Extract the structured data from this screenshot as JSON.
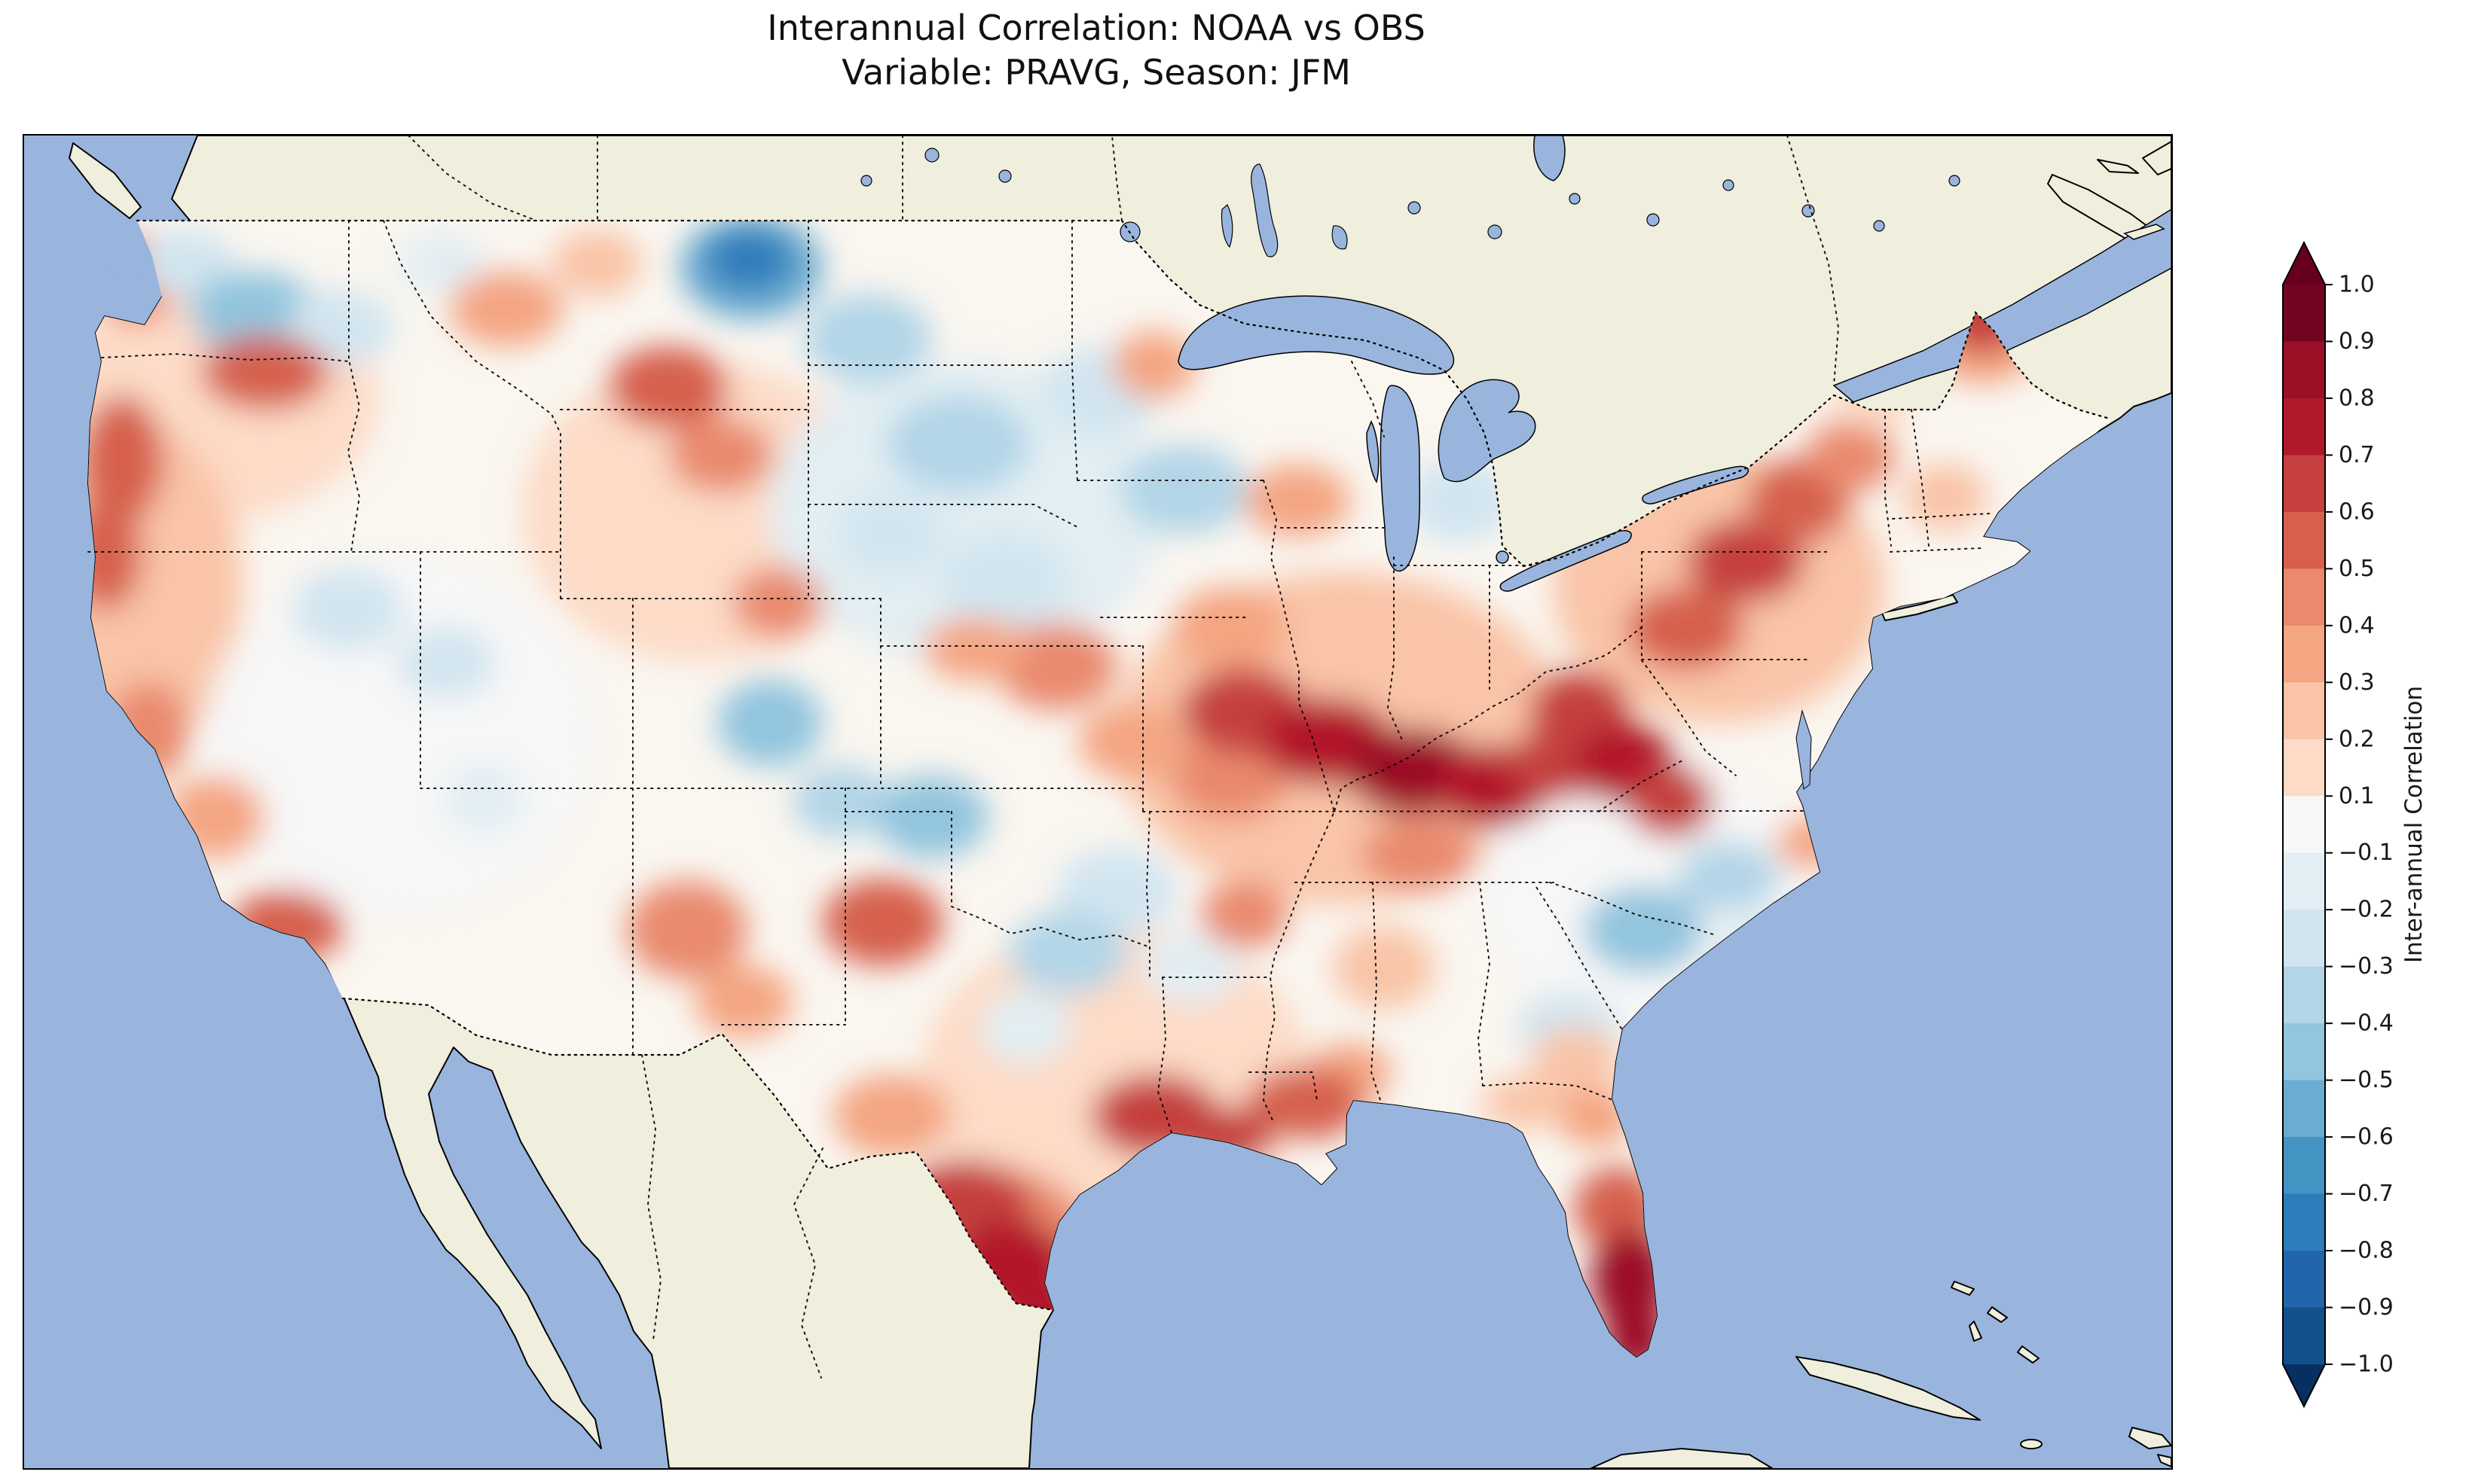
{
  "title": {
    "line1": "Interannual Correlation: NOAA vs OBS",
    "line2": "Variable: PRAVG, Season: JFM"
  },
  "colorbar": {
    "label": "Inter-annual Correlation",
    "ticks": [
      "1.0",
      "0.9",
      "0.8",
      "0.7",
      "0.6",
      "0.5",
      "0.4",
      "0.3",
      "0.2",
      "0.1",
      "−0.1",
      "−0.2",
      "−0.3",
      "−0.4",
      "−0.5",
      "−0.6",
      "−0.7",
      "−0.8",
      "−0.9",
      "−1.0"
    ],
    "segment_colors": [
      "#730421",
      "#9b1027",
      "#b2182b",
      "#c5403e",
      "#d6604d",
      "#e98a6e",
      "#f4a582",
      "#f9c4a7",
      "#fddbc7",
      "#f7f7f7",
      "#e2eef3",
      "#d1e5f0",
      "#b2d5e7",
      "#92c5de",
      "#6bacd1",
      "#4393c3",
      "#2d7dbb",
      "#2166ac",
      "#12508c"
    ],
    "extend_over_color": "#67001f",
    "extend_under_color": "#053061",
    "tick_color": "#1a1a1a"
  },
  "map_style": {
    "ocean_color": "#99b5de",
    "land_color": "#f0eedc",
    "us_base_color": "#faf6f0",
    "coast_color": "#000000"
  },
  "chart_data": {
    "type": "heatmap",
    "title": "Interannual Correlation: NOAA vs OBS",
    "subtitle": "Variable: PRAVG, Season: JFM",
    "variable": "PRAVG",
    "season": "JFM",
    "datasets_compared": [
      "NOAA",
      "OBS"
    ],
    "metric": "Inter-annual Correlation",
    "value_range": [
      -1.0,
      1.0
    ],
    "contour_level_step": 0.1,
    "colormap": "RdBu_r",
    "legend_position": "right vertical colorbar with extend triangles",
    "region": "Contiguous United States (with surrounding Canada, Mexico, Atlantic and Pacific oceans, Great Lakes)",
    "regions_summary": [
      {
        "region": "Washington coast",
        "correlation": 0.45
      },
      {
        "region": "Eastern Washington / N Idaho",
        "correlation": -0.4
      },
      {
        "region": "Northern California coast",
        "correlation": 0.55
      },
      {
        "region": "Southern California",
        "correlation": 0.5
      },
      {
        "region": "Great Basin (NV/UT)",
        "correlation": -0.25
      },
      {
        "region": "N Montana / N Dakota border",
        "correlation": -0.8
      },
      {
        "region": "Central Colorado",
        "correlation": -0.5
      },
      {
        "region": "Nebraska / Dakotas / W Minnesota",
        "correlation": -0.35
      },
      {
        "region": "New Mexico",
        "correlation": 0.45
      },
      {
        "region": "Texas Panhandle",
        "correlation": 0.5
      },
      {
        "region": "South Texas",
        "correlation": 0.75
      },
      {
        "region": "Texas-Louisiana Gulf Coast",
        "correlation": 0.65
      },
      {
        "region": "Ohio Valley (MO-IL-KY-OH-WV)",
        "correlation": 0.8
      },
      {
        "region": "Pennsylvania / New York",
        "correlation": 0.55
      },
      {
        "region": "Maine",
        "correlation": 0.6
      },
      {
        "region": "Carolinas",
        "correlation": -0.45
      },
      {
        "region": "Florida peninsula",
        "correlation": 0.85
      }
    ],
    "map_blobs_format": "[x_px, y_px, rx_px, ry_px, correlation] in 2850x1770 map coordinates (approximate contour field)",
    "map_blobs": [
      [
        250,
        350,
        220,
        160,
        0.15
      ],
      [
        150,
        600,
        140,
        220,
        0.2
      ],
      [
        500,
        800,
        260,
        240,
        -0.1
      ],
      [
        900,
        500,
        240,
        200,
        0.15
      ],
      [
        1250,
        500,
        260,
        200,
        -0.15
      ],
      [
        1750,
        800,
        300,
        220,
        0.2
      ],
      [
        1450,
        1250,
        260,
        200,
        0.1
      ],
      [
        2150,
        1000,
        220,
        180,
        -0.1
      ],
      [
        2250,
        600,
        220,
        180,
        0.2
      ],
      [
        150,
        190,
        55,
        60,
        0.45
      ],
      [
        215,
        170,
        65,
        45,
        -0.3
      ],
      [
        305,
        235,
        85,
        55,
        -0.45
      ],
      [
        420,
        255,
        70,
        50,
        -0.3
      ],
      [
        555,
        170,
        60,
        40,
        -0.2
      ],
      [
        640,
        230,
        75,
        50,
        0.35
      ],
      [
        760,
        170,
        60,
        45,
        0.25
      ],
      [
        965,
        175,
        95,
        70,
        -0.55
      ],
      [
        962,
        165,
        58,
        42,
        -0.8
      ],
      [
        1120,
        270,
        85,
        60,
        -0.35
      ],
      [
        1240,
        410,
        95,
        65,
        -0.4
      ],
      [
        1430,
        340,
        80,
        60,
        -0.3
      ],
      [
        1540,
        470,
        85,
        60,
        -0.35
      ],
      [
        1300,
        590,
        85,
        60,
        -0.3
      ],
      [
        1150,
        530,
        70,
        55,
        -0.25
      ],
      [
        320,
        315,
        85,
        50,
        0.5
      ],
      [
        130,
        430,
        55,
        85,
        0.55
      ],
      [
        108,
        555,
        48,
        75,
        0.55
      ],
      [
        165,
        790,
        55,
        65,
        0.45
      ],
      [
        255,
        905,
        65,
        55,
        0.35
      ],
      [
        350,
        1050,
        75,
        48,
        0.5
      ],
      [
        430,
        630,
        75,
        55,
        -0.3
      ],
      [
        560,
        700,
        65,
        48,
        -0.25
      ],
      [
        610,
        880,
        55,
        48,
        -0.2
      ],
      [
        855,
        335,
        80,
        55,
        0.5
      ],
      [
        925,
        425,
        70,
        50,
        0.45
      ],
      [
        1000,
        620,
        60,
        48,
        0.4
      ],
      [
        990,
        780,
        70,
        58,
        -0.5
      ],
      [
        1085,
        885,
        65,
        48,
        -0.35
      ],
      [
        1205,
        905,
        75,
        55,
        -0.45
      ],
      [
        880,
        1055,
        80,
        65,
        0.45
      ],
      [
        955,
        1150,
        65,
        48,
        0.3
      ],
      [
        1140,
        1045,
        80,
        58,
        0.5
      ],
      [
        1370,
        705,
        80,
        58,
        0.4
      ],
      [
        1470,
        805,
        70,
        50,
        0.35
      ],
      [
        1600,
        655,
        75,
        55,
        0.3
      ],
      [
        1690,
        485,
        70,
        48,
        0.35
      ],
      [
        1905,
        485,
        70,
        55,
        -0.25
      ],
      [
        1500,
        305,
        55,
        45,
        0.3
      ],
      [
        1330,
        1185,
        60,
        48,
        -0.2
      ],
      [
        1450,
        1005,
        80,
        58,
        -0.3
      ],
      [
        1385,
        1085,
        78,
        55,
        -0.35
      ],
      [
        1550,
        1105,
        65,
        48,
        -0.2
      ],
      [
        1620,
        1035,
        58,
        45,
        0.4
      ],
      [
        1600,
        855,
        78,
        55,
        0.45
      ],
      [
        1850,
        955,
        75,
        48,
        0.4
      ],
      [
        1620,
        765,
        85,
        58,
        0.6
      ],
      [
        1730,
        805,
        88,
        58,
        0.75
      ],
      [
        1845,
        845,
        88,
        58,
        0.8
      ],
      [
        1950,
        865,
        78,
        55,
        0.7
      ],
      [
        2035,
        835,
        68,
        48,
        0.6
      ],
      [
        2065,
        765,
        68,
        55,
        0.65
      ],
      [
        2125,
        835,
        68,
        55,
        0.75
      ],
      [
        2185,
        885,
        58,
        48,
        0.6
      ],
      [
        2205,
        655,
        78,
        55,
        0.5
      ],
      [
        2285,
        565,
        78,
        55,
        0.6
      ],
      [
        2355,
        485,
        68,
        55,
        0.5
      ],
      [
        2425,
        425,
        58,
        48,
        0.4
      ],
      [
        2480,
        305,
        48,
        40,
        -0.2
      ],
      [
        2598,
        245,
        90,
        85,
        0.35
      ],
      [
        2600,
        235,
        55,
        55,
        0.6
      ],
      [
        2550,
        480,
        55,
        45,
        0.2
      ],
      [
        2455,
        352,
        55,
        38,
        0.15
      ],
      [
        2150,
        1055,
        80,
        58,
        -0.45
      ],
      [
        2262,
        985,
        68,
        48,
        -0.4
      ],
      [
        2305,
        1085,
        58,
        40,
        -0.3
      ],
      [
        2050,
        1185,
        68,
        48,
        -0.3
      ],
      [
        2370,
        940,
        45,
        35,
        0.3
      ],
      [
        2060,
        1230,
        60,
        45,
        0.25
      ],
      [
        2085,
        1305,
        50,
        38,
        0.35
      ],
      [
        1990,
        1285,
        55,
        35,
        0.25
      ],
      [
        1805,
        1105,
        68,
        55,
        0.2
      ],
      [
        1760,
        1245,
        55,
        40,
        0.35
      ],
      [
        1700,
        1285,
        78,
        48,
        0.5
      ],
      [
        1590,
        1330,
        68,
        40,
        0.6
      ],
      [
        1502,
        1302,
        85,
        55,
        0.65
      ],
      [
        1285,
        1475,
        135,
        105,
        0.45
      ],
      [
        1250,
        1425,
        85,
        65,
        0.6
      ],
      [
        1312,
        1505,
        78,
        65,
        0.75
      ],
      [
        1352,
        1562,
        58,
        48,
        0.7
      ],
      [
        1152,
        1302,
        78,
        55,
        0.35
      ],
      [
        1262,
        682,
        68,
        42,
        0.3
      ],
      [
        2115,
        1425,
        58,
        55,
        0.5
      ],
      [
        2132,
        1520,
        52,
        68,
        0.8
      ],
      [
        2140,
        1598,
        42,
        48,
        0.85
      ]
    ]
  }
}
